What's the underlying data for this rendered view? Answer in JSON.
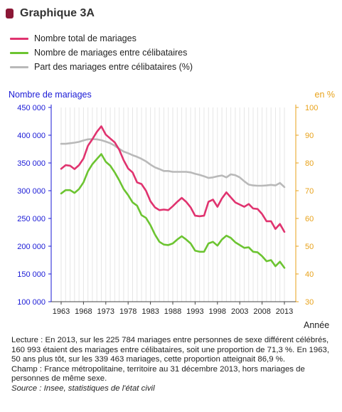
{
  "header": {
    "title": "Graphique 3A"
  },
  "legend": [
    {
      "label": "Nombre total de mariages",
      "color": "#e0336f"
    },
    {
      "label": "Nombre de mariages entre célibataires",
      "color": "#6cc431"
    },
    {
      "label": "Part des mariages entre célibataires (%)",
      "color": "#b9b9b9"
    }
  ],
  "chart_data": {
    "type": "line",
    "ylabel_left": "Nombre de mariages",
    "ylabel_right": "en %",
    "xlabel": "Année",
    "x_tick_labels": [
      "1963",
      "1968",
      "1973",
      "1978",
      "1983",
      "1988",
      "1993",
      "1998",
      "2003",
      "2008",
      "2013"
    ],
    "ylim_left": [
      100000,
      450000
    ],
    "ylim_right": [
      30,
      100
    ],
    "y_ticks_left": [
      "100 000",
      "150 000",
      "200 000",
      "250 000",
      "300 000",
      "350 000",
      "400 000",
      "450 000"
    ],
    "y_ticks_right": [
      "30",
      "40",
      "50",
      "60",
      "70",
      "80",
      "90",
      "100"
    ],
    "grid": "vertical",
    "x": [
      1963,
      1964,
      1965,
      1966,
      1967,
      1968,
      1969,
      1970,
      1971,
      1972,
      1973,
      1974,
      1975,
      1976,
      1977,
      1978,
      1979,
      1980,
      1981,
      1982,
      1983,
      1984,
      1985,
      1986,
      1987,
      1988,
      1989,
      1990,
      1991,
      1992,
      1993,
      1994,
      1995,
      1996,
      1997,
      1998,
      1999,
      2000,
      2001,
      2002,
      2003,
      2004,
      2005,
      2006,
      2007,
      2008,
      2009,
      2010,
      2011,
      2012,
      2013
    ],
    "series": [
      {
        "name": "Nombre total de mariages",
        "axis": "left",
        "color": "#e0336f",
        "values": [
          339463,
          346000,
          345000,
          339000,
          346000,
          358000,
          381000,
          393000,
          406000,
          416000,
          401000,
          394000,
          387000,
          374000,
          355000,
          340000,
          333000,
          315000,
          312000,
          300000,
          281000,
          270000,
          265000,
          266000,
          265000,
          272000,
          280000,
          287000,
          280000,
          270000,
          255000,
          254000,
          255000,
          280000,
          284000,
          271000,
          286000,
          297000,
          288000,
          279000,
          275000,
          271000,
          276000,
          268000,
          267000,
          258000,
          245000,
          245000,
          231000,
          240000,
          225784
        ]
      },
      {
        "name": "Nombre de mariages entre célibataires",
        "axis": "left",
        "color": "#6cc431",
        "values": [
          295000,
          301000,
          301000,
          296000,
          303000,
          315000,
          335000,
          348000,
          357000,
          366000,
          352000,
          345000,
          333000,
          319000,
          303000,
          292000,
          279000,
          273000,
          256000,
          251000,
          238000,
          221000,
          208000,
          203000,
          202000,
          205000,
          212000,
          218000,
          212000,
          205000,
          192000,
          190000,
          190000,
          205000,
          208000,
          201000,
          212000,
          219000,
          215000,
          207000,
          202000,
          197000,
          198000,
          190000,
          189000,
          182000,
          173000,
          175000,
          164000,
          172000,
          160993
        ]
      },
      {
        "name": "Part des mariages entre célibataires (%)",
        "axis": "right",
        "color": "#b9b9b9",
        "values": [
          86.9,
          86.9,
          87.1,
          87.3,
          87.6,
          88.1,
          88.5,
          88.6,
          88.5,
          88.2,
          87.7,
          87.1,
          86.2,
          85.1,
          84.1,
          83.5,
          82.8,
          82.2,
          81.5,
          80.6,
          79.4,
          78.4,
          77.8,
          77.1,
          77.1,
          76.8,
          76.8,
          76.8,
          76.8,
          76.6,
          76.1,
          75.7,
          75.2,
          74.6,
          74.8,
          75.2,
          75.5,
          74.8,
          75.9,
          75.6,
          74.8,
          73.4,
          72.2,
          71.9,
          71.8,
          71.8,
          71.9,
          72.1,
          71.9,
          72.8,
          71.3
        ]
      }
    ]
  },
  "notes": {
    "lecture": "Lecture : En 2013, sur les 225 784 mariages entre personnes de sexe différent célébrés, 160 993 étaient des mariages entre célibataires, soit une proportion de 71,3 %. En 1963, 50 ans plus tôt, sur les 339 463 mariages, cette proportion atteignait 86,9 %.",
    "champ": "Champ : France métropolitaine, territoire au 31 décembre 2013, hors mariages de personnes de même sexe.",
    "source": "Source : Insee, statistiques de l'état civil"
  }
}
